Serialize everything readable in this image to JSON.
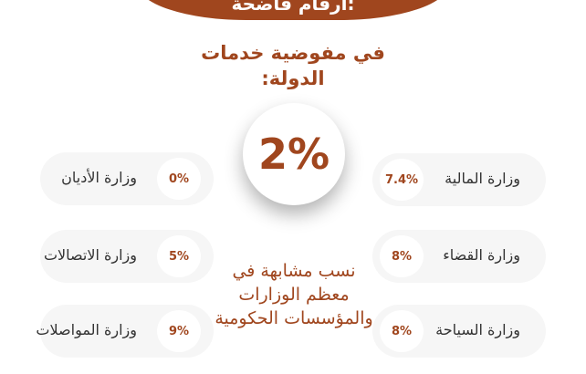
{
  "banner": {
    "title": "أرقام فاضحة:"
  },
  "subtitle": "في مفوضية خدمات الدولة:",
  "center": {
    "value": "2%"
  },
  "left": [
    {
      "label": "وزارة الأديان",
      "value": "0%"
    },
    {
      "label": "وزارة الاتصالات",
      "value": "5%"
    },
    {
      "label": "وزارة المواصلات",
      "value": "9%"
    }
  ],
  "right": [
    {
      "label": "وزارة المالية",
      "value": "7.4%"
    },
    {
      "label": "وزارة القضاء",
      "value": "8%"
    },
    {
      "label": "وزارة السياحة",
      "value": "8%"
    }
  ],
  "note": "نسب مشابهة في معظم الوزارات والمؤسسات الحكومية",
  "colors": {
    "accent": "#a0461e",
    "pill": "#f6f6f6"
  }
}
